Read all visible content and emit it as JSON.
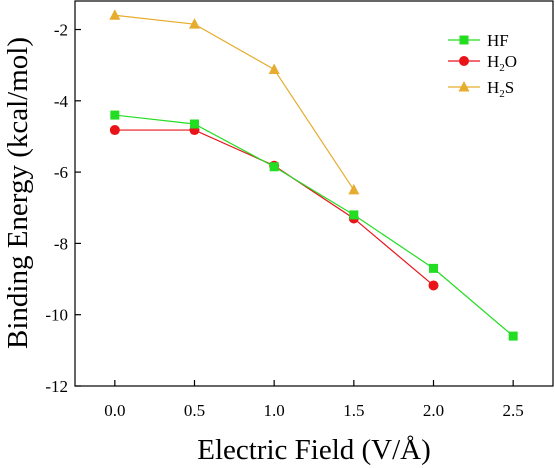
{
  "chart_data": {
    "type": "line",
    "xlabel": "Electric Field (V/Å)",
    "ylabel": "Binding Energy (kcal/mol)",
    "xlim": [
      -0.25,
      2.75
    ],
    "ylim": [
      -12,
      -1.2
    ],
    "xticks": [
      0.0,
      0.5,
      1.0,
      1.5,
      2.0,
      2.5
    ],
    "xtick_labels": [
      "0.0",
      "0.5",
      "1.0",
      "1.5",
      "2.0",
      "2.5"
    ],
    "yticks": [
      -2,
      -4,
      -6,
      -8,
      -10,
      -12
    ],
    "ytick_labels": [
      "-2",
      "-4",
      "-6",
      "-8",
      "-10",
      "-12"
    ],
    "grid": false,
    "legend_position": "top-right",
    "series": [
      {
        "name": "HF",
        "name_parts": [
          "HF",
          "",
          ""
        ],
        "marker": "square",
        "color": "#22dd22",
        "x": [
          0.0,
          0.5,
          1.0,
          1.5,
          2.0,
          2.5
        ],
        "y": [
          -4.4,
          -4.65,
          -5.85,
          -7.2,
          -8.7,
          -10.6
        ]
      },
      {
        "name": "H2O",
        "name_parts": [
          "H",
          "2",
          "O"
        ],
        "marker": "circle",
        "color": "#e8141a",
        "x": [
          0.0,
          0.5,
          1.0,
          1.5,
          2.0
        ],
        "y": [
          -4.82,
          -4.82,
          -5.82,
          -7.3,
          -9.18
        ]
      },
      {
        "name": "H2S",
        "name_parts": [
          "H",
          "2",
          "S"
        ],
        "marker": "triangle",
        "color": "#e6ac2e",
        "x": [
          0.0,
          0.5,
          1.0,
          1.5
        ],
        "y": [
          -1.6,
          -1.85,
          -3.12,
          -6.5
        ]
      }
    ]
  }
}
